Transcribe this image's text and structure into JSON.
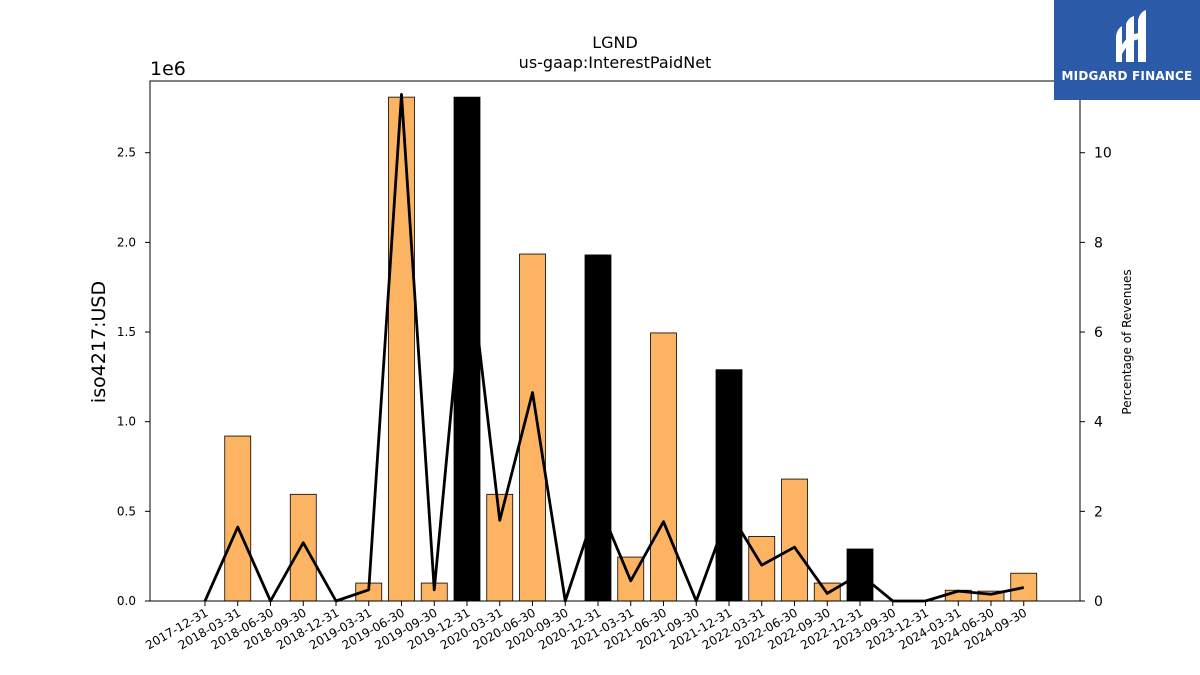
{
  "chart_data": {
    "type": "bar",
    "title": "LGND",
    "subtitle": "us-gaap:InterestPaidNet",
    "ylabel": "iso4217:USD",
    "y2label": "Percentage of Revenues",
    "yscale_label": "1e6",
    "ylim": [
      0,
      2.9
    ],
    "y2lim": [
      0,
      11.6
    ],
    "yticks": [
      "0.0",
      "0.5",
      "1.0",
      "1.5",
      "2.0",
      "2.5"
    ],
    "y2ticks": [
      "0",
      "2",
      "4",
      "6",
      "8",
      "10"
    ],
    "categories": [
      "2017-12-31",
      "2018-03-31",
      "2018-06-30",
      "2018-09-30",
      "2018-12-31",
      "2019-03-31",
      "2019-06-30",
      "2019-09-30",
      "2019-12-31",
      "2020-03-31",
      "2020-06-30",
      "2020-09-30",
      "2020-12-31",
      "2021-03-31",
      "2021-06-30",
      "2021-09-30",
      "2021-12-31",
      "2022-03-31",
      "2022-06-30",
      "2022-09-30",
      "2022-12-31",
      "2023-09-30",
      "2023-12-31",
      "2024-03-31",
      "2024-06-30",
      "2024-09-30"
    ],
    "series": [
      {
        "kind": "bar",
        "values": [
          0,
          0.92,
          0,
          0.595,
          0,
          0.1,
          2.81,
          0.1,
          2.81,
          0.595,
          1.935,
          0,
          1.93,
          0.245,
          1.495,
          0,
          1.29,
          0.36,
          0.68,
          0.1,
          0.29,
          0,
          0,
          0.06,
          0.055,
          0.155
        ],
        "colors": [
          "#fdb462",
          "#fdb462",
          "#fdb462",
          "#fdb462",
          "#fdb462",
          "#fdb462",
          "#fdb462",
          "#fdb462",
          "#000000",
          "#fdb462",
          "#fdb462",
          "#fdb462",
          "#000000",
          "#fdb462",
          "#fdb462",
          "#fdb462",
          "#000000",
          "#fdb462",
          "#fdb462",
          "#fdb462",
          "#000000",
          "#fdb462",
          "#fdb462",
          "#fdb462",
          "#fdb462",
          "#fdb462"
        ]
      },
      {
        "kind": "line",
        "axis": "right",
        "values": [
          0,
          1.65,
          0,
          1.3,
          0,
          0.25,
          11.3,
          0.25,
          8.0,
          1.8,
          4.65,
          0,
          2.2,
          0.45,
          1.77,
          0,
          2.0,
          0.8,
          1.2,
          0.17,
          0.6,
          0,
          0,
          0.22,
          0.15,
          0.3
        ],
        "color": "#000000"
      }
    ],
    "grid": false,
    "legend": "none"
  },
  "logo": {
    "text": "MIDGARD FINANCE",
    "color": "#2b5aa8"
  }
}
